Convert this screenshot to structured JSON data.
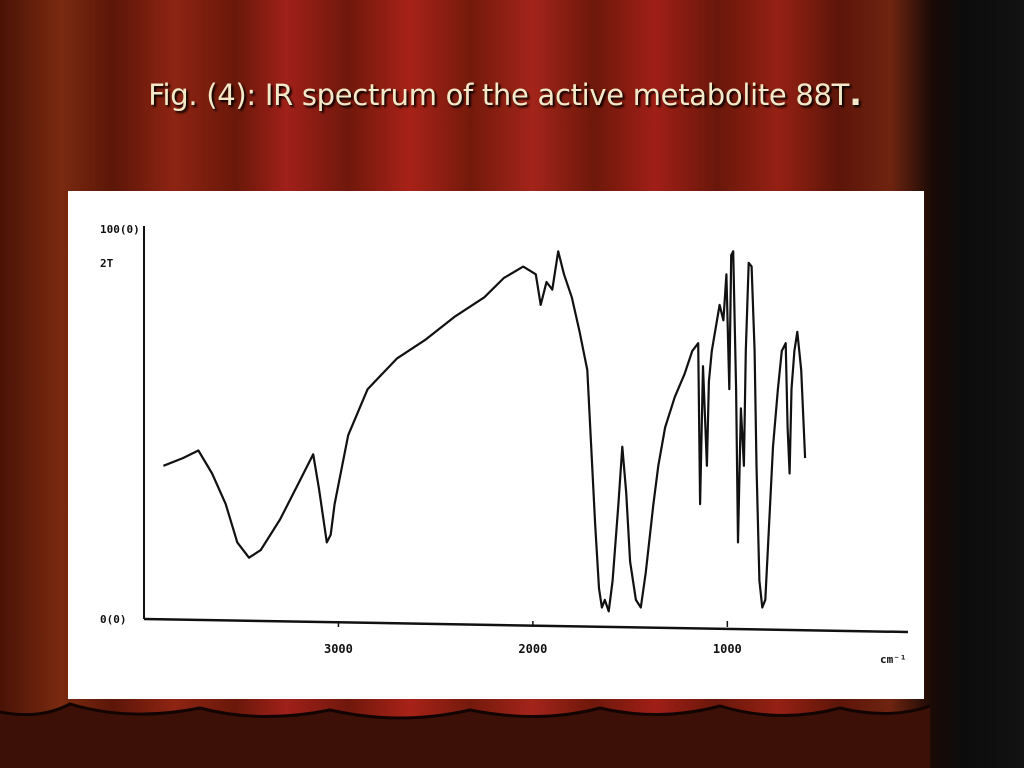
{
  "slide": {
    "title": "Fig. (4): IR spectrum of the active metabolite 88T",
    "title_dot": "."
  },
  "colors": {
    "background": "#3a0c05",
    "curtain_dark": "#3a0c05",
    "curtain_red": "#8a1a10",
    "title_text": "#f3e9c8",
    "panel": "#ffffff",
    "ink": "#111111"
  },
  "chart_data": {
    "type": "line",
    "title": "",
    "xlabel": "cm-1",
    "ylabel": "",
    "x_ticks": [
      3000,
      2000,
      1000
    ],
    "x_tick_labels": [
      "3000",
      "2000",
      "1000"
    ],
    "x_unit_label": "cm⁻¹",
    "y_axis_marks": [
      "100(0)",
      "2T",
      "0(0)"
    ],
    "xlim": [
      4000,
      400
    ],
    "ylim": [
      0,
      100
    ],
    "series": [
      {
        "values_note": "",
        "points": [
          [
            3900,
            40
          ],
          [
            3800,
            42
          ],
          [
            3720,
            44
          ],
          [
            3650,
            38
          ],
          [
            3580,
            30
          ],
          [
            3520,
            20
          ],
          [
            3460,
            16
          ],
          [
            3400,
            18
          ],
          [
            3300,
            26
          ],
          [
            3200,
            36
          ],
          [
            3130,
            43
          ],
          [
            3100,
            34
          ],
          [
            3060,
            20
          ],
          [
            3040,
            22
          ],
          [
            3020,
            30
          ],
          [
            2950,
            48
          ],
          [
            2850,
            60
          ],
          [
            2700,
            68
          ],
          [
            2550,
            73
          ],
          [
            2400,
            79
          ],
          [
            2250,
            84
          ],
          [
            2150,
            89
          ],
          [
            2050,
            92
          ],
          [
            1985,
            90
          ],
          [
            1960,
            82
          ],
          [
            1930,
            88
          ],
          [
            1900,
            86
          ],
          [
            1870,
            96
          ],
          [
            1840,
            90
          ],
          [
            1800,
            84
          ],
          [
            1760,
            75
          ],
          [
            1720,
            65
          ],
          [
            1700,
            45
          ],
          [
            1680,
            25
          ],
          [
            1660,
            8
          ],
          [
            1645,
            3
          ],
          [
            1630,
            5
          ],
          [
            1610,
            2
          ],
          [
            1590,
            10
          ],
          [
            1560,
            30
          ],
          [
            1540,
            45
          ],
          [
            1520,
            33
          ],
          [
            1500,
            15
          ],
          [
            1470,
            5
          ],
          [
            1445,
            3
          ],
          [
            1420,
            12
          ],
          [
            1380,
            30
          ],
          [
            1355,
            40
          ],
          [
            1320,
            50
          ],
          [
            1270,
            58
          ],
          [
            1220,
            64
          ],
          [
            1180,
            70
          ],
          [
            1150,
            72
          ],
          [
            1140,
            30
          ],
          [
            1125,
            66
          ],
          [
            1105,
            40
          ],
          [
            1095,
            62
          ],
          [
            1080,
            70
          ],
          [
            1040,
            82
          ],
          [
            1020,
            78
          ],
          [
            1005,
            90
          ],
          [
            990,
            60
          ],
          [
            980,
            95
          ],
          [
            970,
            96
          ],
          [
            955,
            60
          ],
          [
            945,
            20
          ],
          [
            930,
            55
          ],
          [
            915,
            40
          ],
          [
            905,
            70
          ],
          [
            890,
            93
          ],
          [
            875,
            92
          ],
          [
            860,
            70
          ],
          [
            850,
            40
          ],
          [
            835,
            10
          ],
          [
            820,
            3
          ],
          [
            805,
            5
          ],
          [
            790,
            20
          ],
          [
            765,
            45
          ],
          [
            740,
            60
          ],
          [
            720,
            70
          ],
          [
            700,
            72
          ],
          [
            690,
            50
          ],
          [
            680,
            38
          ],
          [
            670,
            60
          ],
          [
            655,
            70
          ],
          [
            640,
            75
          ],
          [
            620,
            65
          ],
          [
            600,
            42
          ]
        ]
      }
    ],
    "grid": false
  }
}
